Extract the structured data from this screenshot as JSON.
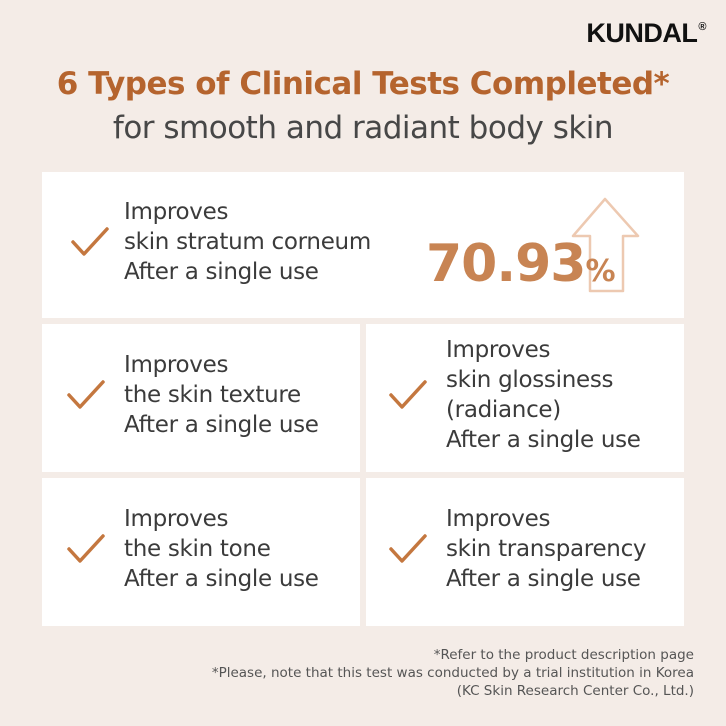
{
  "brand": {
    "name": "KUNDAL",
    "mark": "®"
  },
  "header": {
    "title": "6 Types of Clinical Tests Completed*",
    "subtitle": "for smooth and radiant body skin"
  },
  "cards": [
    {
      "lines": [
        "Improves",
        "skin stratum corneum",
        "After a single use"
      ],
      "stat": {
        "value": 70.93,
        "unit": "%"
      }
    },
    {
      "lines": [
        "Improves",
        "the skin texture",
        "After a single use"
      ]
    },
    {
      "lines": [
        "Improves",
        "skin glossiness",
        "(radiance)",
        "After a single use"
      ]
    },
    {
      "lines": [
        "Improves",
        "the skin tone",
        "After a single use"
      ]
    },
    {
      "lines": [
        "Improves",
        "skin transparency",
        "After a single use"
      ]
    }
  ],
  "footnotes": [
    "*Refer to the product description page",
    "*Please, note that this test was conducted by a trial institution in Korea",
    "(KC Skin Research Center Co., Ltd.)"
  ]
}
